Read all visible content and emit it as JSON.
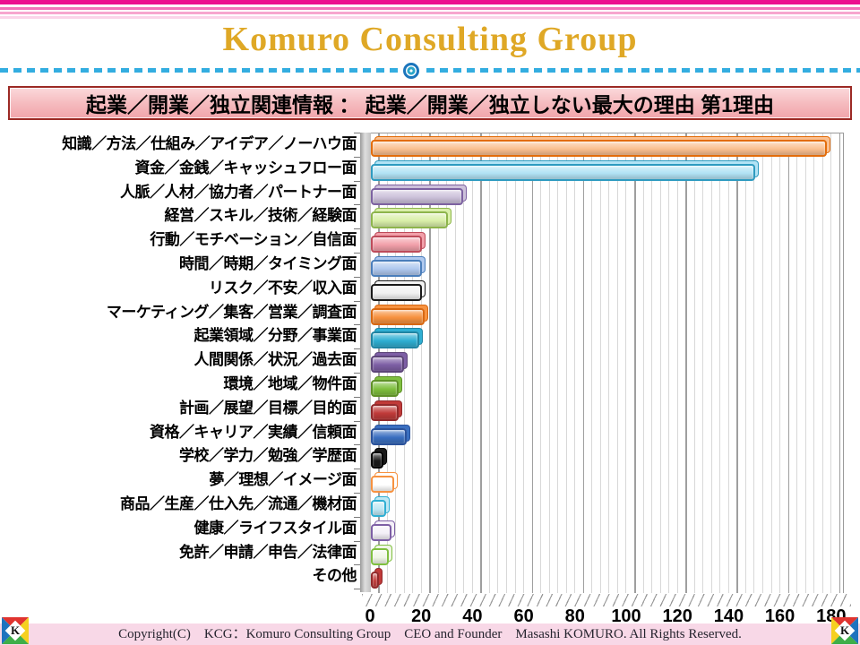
{
  "header": {
    "brand": "Komuro Consulting Group"
  },
  "banner": {
    "title": "起業／開業／独立関連情報 ： 起業／開業／独立しない最大の理由 第1理由"
  },
  "chart_data": {
    "type": "bar",
    "orientation": "horizontal",
    "title": "起業／開業／独立しない最大の理由 第1理由",
    "categories": [
      "知識／方法／仕組み／アイデア／ノーハウ面",
      "資金／金銭／キャッシュフロー面",
      "人脈／人材／協力者／パートナー面",
      "経営／スキル／技術／経験面",
      "行動／モチベーション／自信面",
      "時間／時期／タイミング面",
      "リスク／不安／収入面",
      "マーケティング／集客／営業／調査面",
      "起業領域／分野／事業面",
      "人間関係／状況／過去面",
      "環境／地域／物件面",
      "計画／展望／目標／目的面",
      "資格／キャリア／実績／信頼面",
      "学校／学力／勉強／学歴面",
      "夢／理想／イメージ面",
      "商品／生産／仕入先／流通／機材面",
      "健康／ライフスタイル面",
      "免許／申請／申告／法律面",
      "その他"
    ],
    "values": [
      178,
      150,
      36,
      30,
      20,
      20,
      20,
      21,
      19,
      13,
      11,
      11,
      14,
      5,
      9,
      6,
      8,
      7,
      3
    ],
    "xlim": [
      0,
      180
    ],
    "x_ticks": [
      0,
      20,
      40,
      60,
      80,
      100,
      120,
      140,
      160,
      180
    ],
    "grid": "vertical; major every 20 units, fine minor lines between; 3D wall and floor",
    "legend": "none",
    "bar_colors": [
      {
        "fill": "#FAC090",
        "border": "#E36C0A"
      },
      {
        "fill": "#B2E3F5",
        "border": "#2E9BC0"
      },
      {
        "fill": "#CCC1DA",
        "border": "#7D62A1"
      },
      {
        "fill": "#D9EFA9",
        "border": "#8DB54B"
      },
      {
        "fill": "#F2A0AA",
        "border": "#BE4B5A"
      },
      {
        "fill": "#AFC8EE",
        "border": "#4A7EBB"
      },
      {
        "fill": "#F2F2F2",
        "border": "#1A1A1A"
      },
      {
        "fill": "#F79240",
        "border": "#D86812"
      },
      {
        "fill": "#2FAFD3",
        "border": "#1F84A3"
      },
      {
        "fill": "#7D5FA5",
        "border": "#5D4579"
      },
      {
        "fill": "#7FBF3F",
        "border": "#5E9027"
      },
      {
        "fill": "#C03A39",
        "border": "#92292B"
      },
      {
        "fill": "#3A6FC0",
        "border": "#2A529B"
      },
      {
        "fill": "#1A1A1A",
        "border": "#000000"
      },
      {
        "fill": "#FFFFFF",
        "border": "#F79240"
      },
      {
        "fill": "#BFE8F4",
        "border": "#2FAFD3"
      },
      {
        "fill": "#F4F0F8",
        "border": "#7D5FA5"
      },
      {
        "fill": "#F0F6E6",
        "border": "#7FBF3F"
      },
      {
        "fill": "#C03A39",
        "border": "#92292B"
      }
    ]
  },
  "footer": {
    "copyright": "Copyright(C)　KCG：Komuro Consulting Group　CEO and Founder　Masashi KOMURO. All Rights Reserved.",
    "logo_letter": "K"
  },
  "theme": {
    "brand_gold": "#DFA826",
    "stripe_magenta": "#EC108F",
    "divider_cyan": "#33ADE0",
    "banner_border": "#9C2A25",
    "banner_bg_top": "#FBD9DB",
    "banner_bg_bottom": "#F1A5AB",
    "footer_bg": "#F8D8E7"
  }
}
